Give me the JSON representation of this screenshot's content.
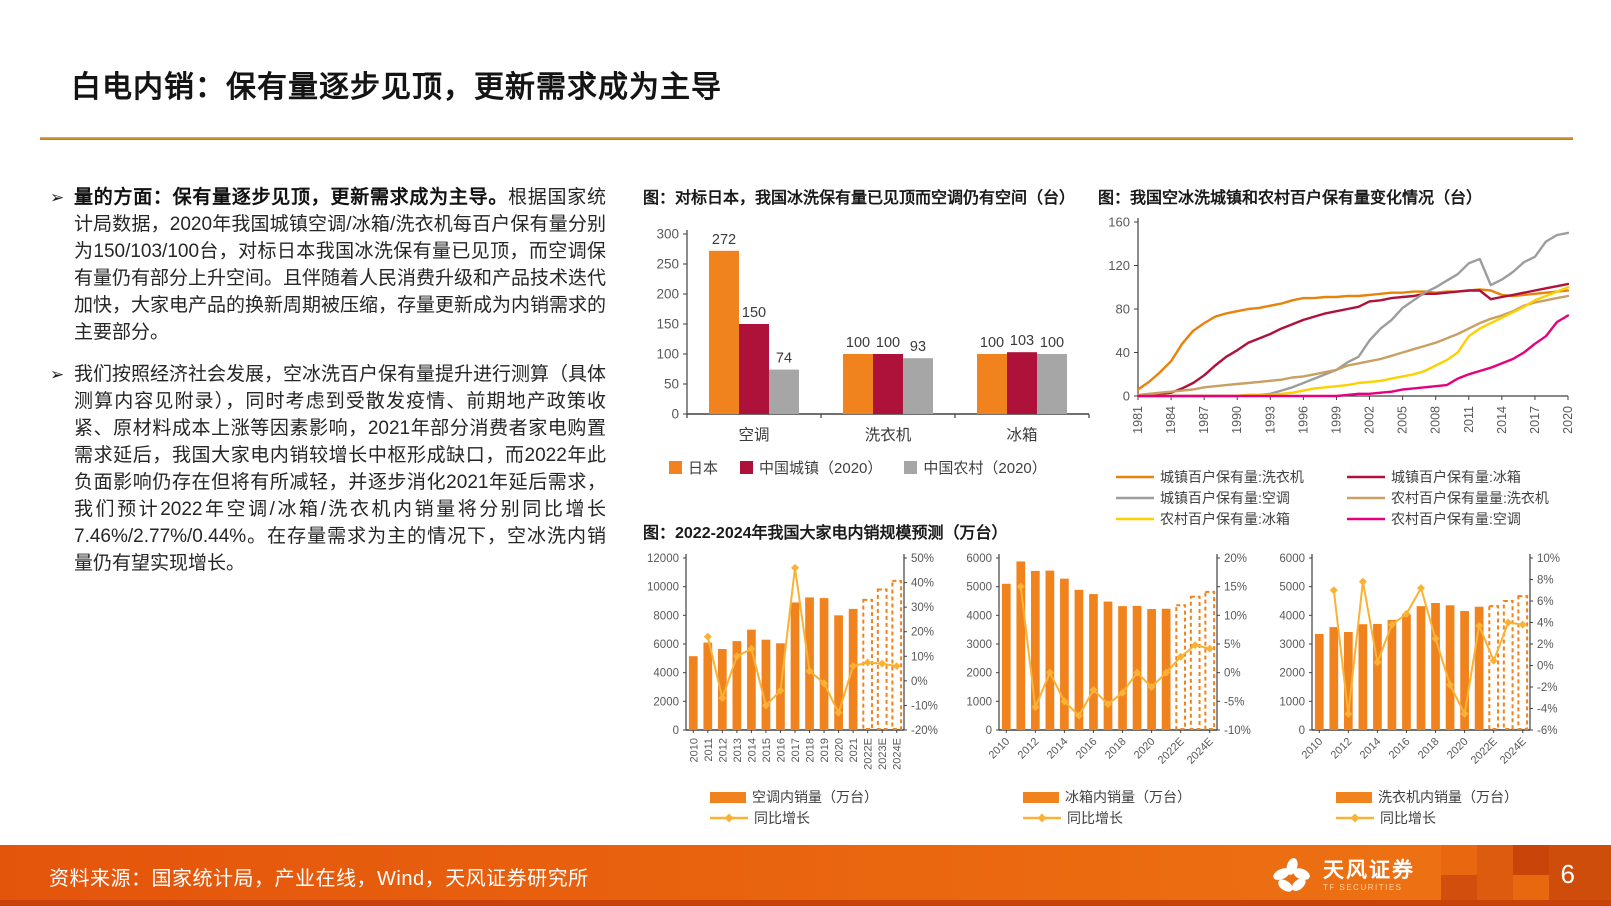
{
  "slide": {
    "title": "白电内销：保有量逐步见顶，更新需求成为主导",
    "bullet_marker": "➢"
  },
  "bullets": [
    {
      "lead": "量的方面：保有量逐步见顶，更新需求成为主导。",
      "text": "根据国家统计局数据，2020年我国城镇空调/冰箱/洗衣机每百户保有量分别为150/103/100台，对标日本我国冰洗保有量已见顶，而空调保有量仍有部分上升空间。且伴随着人民消费升级和产品技术迭代加快，大家电产品的换新周期被压缩，存量更新成为内销需求的主要部分。"
    },
    {
      "lead": "",
      "text": "我们按照经济社会发展，空冰洗百户保有量提升进行测算（具体测算内容见附录），同时考虑到受散发疫情、前期地产政策收紧、原材料成本上涨等因素影响，2021年部分消费者家电购置需求延后，我国大家电内销较增长中枢形成缺口，而2022年此负面影响仍存在但将有所减轻，并逐步消化2021年延后需求，我们预计2022年空调/冰箱/洗衣机内销量将分别同比增长7.46%/2.77%/0.44%。在存量需求为主的情况下，空冰洗内销量仍有望实现增长。"
    }
  ],
  "footer": {
    "source": "资料来源：国家统计局，产业在线，Wind，天风证券研究所",
    "brand": "天风证券",
    "brand_sub": "TF SECURITIES",
    "page": "6"
  },
  "colors": {
    "accent_orange": "#F0831E",
    "line_gold": "#F9B234",
    "dark_red": "#AE123A",
    "gray": "#A6A6A6",
    "tan": "#C9A063",
    "yellow": "#FDD000",
    "magenta": "#E5007D",
    "footer_orange": "#E4550C",
    "rule_gold": "#CE9230"
  },
  "chart_data": [
    {
      "id": "benchmark-japan",
      "type": "bar",
      "title": "图：对标日本，我国冰洗保有量已见顶而空调仍有空间（台）",
      "categories": [
        "空调",
        "洗衣机",
        "冰箱"
      ],
      "series": [
        {
          "name": "日本",
          "color": "#F0831E",
          "values": [
            272,
            100,
            100
          ]
        },
        {
          "name": "中国城镇（2020）",
          "color": "#AE123A",
          "values": [
            150,
            100,
            103
          ]
        },
        {
          "name": "中国农村（2020）",
          "color": "#A6A6A6",
          "values": [
            74,
            93,
            100
          ]
        }
      ],
      "ylim": [
        0,
        300
      ],
      "ystep": 50,
      "legend_position": "bottom"
    },
    {
      "id": "ownership-trend",
      "type": "line",
      "title": "图：我国空冰洗城镇和农村百户保有量变化情况（台）",
      "x_start": 1981,
      "xticks": [
        "1981",
        "1984",
        "1987",
        "1990",
        "1993",
        "1996",
        "1999",
        "2002",
        "2005",
        "2008",
        "2011",
        "2014",
        "2017",
        "2020"
      ],
      "ylim": [
        0,
        160
      ],
      "ystep": 40,
      "series": [
        {
          "name": "城镇百户保有量:洗衣机",
          "color": "#E8820C",
          "values": [
            6,
            13,
            22,
            32,
            48,
            60,
            67,
            73,
            76,
            78,
            80,
            81,
            83,
            85,
            88,
            90,
            90,
            91,
            91,
            92,
            92,
            93,
            94,
            95,
            95,
            96,
            96,
            95,
            96,
            96,
            97,
            98,
            97,
            93,
            92,
            93,
            94,
            95,
            96,
            97
          ]
        },
        {
          "name": "城镇百户保有量:冰箱",
          "color": "#AE123A",
          "values": [
            0,
            1,
            2,
            3,
            7,
            12,
            19,
            28,
            36,
            42,
            49,
            53,
            57,
            62,
            66,
            70,
            73,
            76,
            78,
            80,
            82,
            87,
            88,
            90,
            91,
            92,
            94,
            94,
            95,
            96,
            97,
            97,
            89,
            91,
            93,
            95,
            97,
            99,
            101,
            103
          ]
        },
        {
          "name": "城镇百户保有量:空调",
          "color": "#9D9D9C",
          "values": [
            0,
            0,
            0,
            0,
            0,
            0,
            0,
            0,
            0,
            0,
            1,
            1,
            2,
            5,
            8,
            12,
            16,
            20,
            24,
            31,
            36,
            51,
            62,
            70,
            81,
            88,
            95,
            100,
            106,
            112,
            122,
            126,
            102,
            107,
            114,
            123,
            128,
            142,
            148,
            150
          ]
        },
        {
          "name": "农村百户保有量量:洗衣机",
          "color": "#C9A063",
          "values": [
            1,
            2,
            3,
            4,
            5,
            6,
            8,
            9,
            10,
            11,
            12,
            13,
            14,
            15,
            17,
            18,
            20,
            22,
            24,
            28,
            30,
            32,
            34,
            37,
            40,
            43,
            46,
            49,
            53,
            57,
            62,
            67,
            71,
            74,
            78,
            83,
            86,
            88,
            90,
            92
          ]
        },
        {
          "name": "农村百户保有量:冰箱",
          "color": "#FDD000",
          "values": [
            0,
            0,
            0,
            0,
            0,
            0,
            0,
            0,
            0,
            0,
            1,
            1,
            1,
            2,
            3,
            5,
            7,
            8,
            9,
            10,
            12,
            13,
            14,
            16,
            18,
            20,
            23,
            28,
            33,
            40,
            55,
            62,
            67,
            72,
            77,
            82,
            88,
            92,
            96,
            100
          ]
        },
        {
          "name": "农村百户保有量:空调",
          "color": "#E5007D",
          "values": [
            0,
            0,
            0,
            0,
            0,
            0,
            0,
            0,
            0,
            0,
            0,
            0,
            0,
            0,
            0,
            0,
            0,
            0,
            0,
            1,
            2,
            2,
            3,
            4,
            6,
            7,
            8,
            9,
            10,
            16,
            20,
            23,
            26,
            30,
            34,
            40,
            48,
            55,
            68,
            74
          ]
        }
      ]
    },
    {
      "id": "ac-forecast",
      "type": "combo",
      "section_title": "图：2022-2024年我国大家电内销规模预测（万台）",
      "categories": [
        "2010",
        "2011",
        "2012",
        "2013",
        "2014",
        "2015",
        "2016",
        "2017",
        "2018",
        "2019",
        "2020",
        "2021",
        "2022E",
        "2023E",
        "2024E"
      ],
      "forecast_from": 12,
      "bar_series": {
        "name": "空调内销量（万台）",
        "color": "#F0831E",
        "values": [
          5150,
          6100,
          5650,
          6200,
          7000,
          6300,
          6050,
          8900,
          9250,
          9200,
          8000,
          8450,
          9080,
          9800,
          10400
        ]
      },
      "line_series": {
        "name": "同比增长",
        "color": "#F9B234",
        "values": [
          null,
          18,
          -7,
          10,
          13,
          -10,
          -4,
          46,
          4,
          -1,
          -13,
          6,
          7.46,
          7,
          6
        ]
      },
      "ylim_left": [
        0,
        12000
      ],
      "ystep_left": 2000,
      "ylim_right": [
        -20,
        50
      ],
      "ystep_right": 10,
      "xtick_every": 1,
      "xtick_rotation": -90
    },
    {
      "id": "fridge-forecast",
      "type": "combo",
      "categories": [
        "2010",
        "2011",
        "2012",
        "2013",
        "2014",
        "2015",
        "2016",
        "2017",
        "2018",
        "2019",
        "2020",
        "2021",
        "2022E",
        "2023E",
        "2024E"
      ],
      "forecast_from": 12,
      "bar_series": {
        "name": "冰箱内销量（万台）",
        "color": "#F0831E",
        "values": [
          5100,
          5880,
          5550,
          5560,
          5280,
          4890,
          4740,
          4480,
          4320,
          4330,
          4220,
          4230,
          4350,
          4650,
          4820
        ]
      },
      "line_series": {
        "name": "同比增长",
        "color": "#F9B234",
        "values": [
          null,
          15,
          -6,
          0,
          -5,
          -7.5,
          -3,
          -5.5,
          -3.5,
          0,
          -2.5,
          0,
          2.77,
          4.8,
          4.2
        ]
      },
      "ylim_left": [
        0,
        6000
      ],
      "ystep_left": 1000,
      "ylim_right": [
        -10,
        20
      ],
      "ystep_right": 5,
      "xtick_every": 2,
      "xtick_rotation": -45
    },
    {
      "id": "washer-forecast",
      "type": "combo",
      "categories": [
        "2010",
        "2011",
        "2012",
        "2013",
        "2014",
        "2015",
        "2016",
        "2017",
        "2018",
        "2019",
        "2020",
        "2021",
        "2022E",
        "2023E",
        "2024E"
      ],
      "forecast_from": 12,
      "bar_series": {
        "name": "洗衣机内销量（万台）",
        "color": "#F0831E",
        "values": [
          3350,
          3590,
          3420,
          3690,
          3700,
          3840,
          4030,
          4320,
          4430,
          4350,
          4150,
          4300,
          4320,
          4500,
          4670
        ]
      },
      "line_series": {
        "name": "同比增长",
        "color": "#F9B234",
        "values": [
          null,
          7,
          -4.5,
          7.8,
          0.3,
          3.8,
          4.8,
          7.2,
          2.5,
          -1.8,
          -4.5,
          3.7,
          0.44,
          4,
          3.8
        ]
      },
      "ylim_left": [
        0,
        6000
      ],
      "ystep_left": 1000,
      "ylim_right": [
        -6,
        10
      ],
      "ystep_right": 2,
      "xtick_every": 2,
      "xtick_rotation": -45
    }
  ]
}
